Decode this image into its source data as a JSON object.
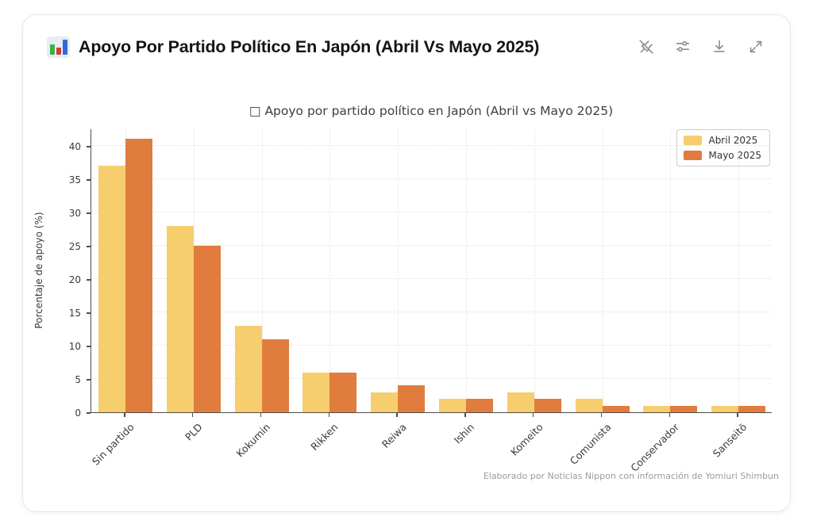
{
  "header": {
    "title": "Apoyo Por Partido Político En Japón (Abril Vs Mayo 2025)",
    "icon": "bar-chart-emoji-icon",
    "toolbar_icons": [
      "pin-off-icon",
      "sliders-icon",
      "download-icon",
      "expand-icon"
    ]
  },
  "chart_data": {
    "type": "bar",
    "title": "□ Apoyo por partido político en Japón (Abril vs Mayo 2025)",
    "categories": [
      "Sin partido",
      "PLD",
      "Kokumin",
      "Rikken",
      "Reiwa",
      "Ishin",
      "Komeito",
      "Comunista",
      "Conservador",
      "Sanseitō"
    ],
    "series": [
      {
        "name": "Abril 2025",
        "color": "#F6CE6E",
        "values": [
          37,
          28,
          13,
          6,
          3,
          2,
          3,
          2,
          1,
          1
        ]
      },
      {
        "name": "Mayo 2025",
        "color": "#E07C3E",
        "values": [
          41,
          25,
          11,
          6,
          4,
          2,
          2,
          1,
          1,
          1
        ]
      }
    ],
    "xlabel": "",
    "ylabel": "Porcentaje de apoyo (%)",
    "yticks": [
      0,
      5,
      10,
      15,
      20,
      25,
      30,
      35,
      40
    ],
    "ylim": [
      0,
      42.6
    ],
    "grid": "dotted-both-axes",
    "legend_position": "top-right",
    "spines": "left-bottom-only",
    "source": "Elaborado por Noticias Nippon con información de Yomiuri Shimbun"
  }
}
